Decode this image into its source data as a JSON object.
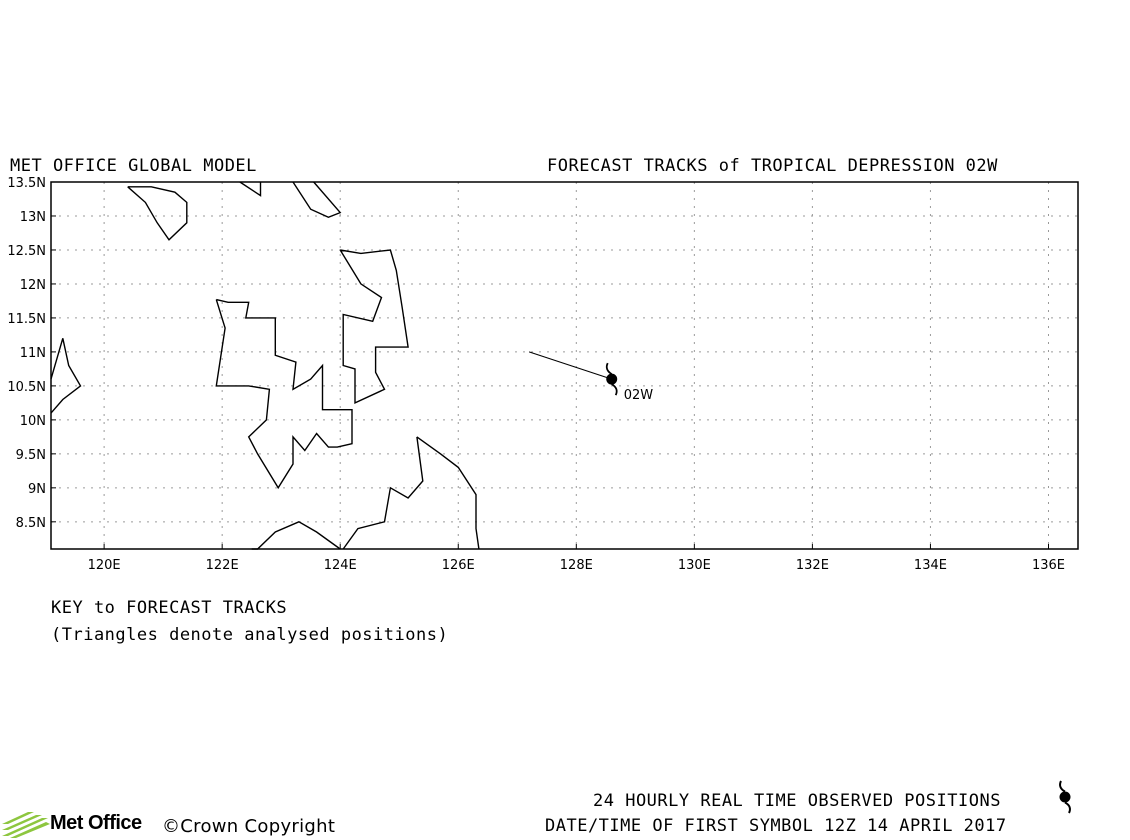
{
  "header": {
    "left_title": "MET OFFICE GLOBAL MODEL",
    "right_title": "FORECAST TRACKS of TROPICAL DEPRESSION 02W"
  },
  "map": {
    "lon_range": [
      119.1,
      136.5
    ],
    "lat_range": [
      8.1,
      13.5
    ],
    "x_ticks": [
      "120E",
      "122E",
      "124E",
      "126E",
      "128E",
      "130E",
      "132E",
      "134E",
      "136E"
    ],
    "x_tick_values": [
      120,
      122,
      124,
      126,
      128,
      130,
      132,
      134,
      136
    ],
    "y_ticks": [
      "13.5N",
      "13N",
      "12.5N",
      "12N",
      "11.5N",
      "11N",
      "10.5N",
      "10N",
      "9.5N",
      "9N",
      "8.5N"
    ],
    "y_tick_values": [
      13.5,
      13,
      12.5,
      12,
      11.5,
      11,
      10.5,
      10,
      9.5,
      9,
      8.5
    ],
    "grid": true,
    "coastlines": [
      [
        [
          120.4,
          13.43
        ],
        [
          120.8,
          13.43
        ],
        [
          121.2,
          13.35
        ],
        [
          121.4,
          13.2
        ],
        [
          121.4,
          12.9
        ],
        [
          121.1,
          12.65
        ],
        [
          120.9,
          12.9
        ],
        [
          120.7,
          13.2
        ],
        [
          120.4,
          13.43
        ]
      ],
      [
        [
          122.3,
          13.5
        ],
        [
          122.65,
          13.3
        ],
        [
          122.65,
          13.5
        ]
      ],
      [
        [
          123.2,
          13.5
        ],
        [
          123.5,
          13.1
        ],
        [
          123.8,
          12.98
        ],
        [
          124.0,
          13.05
        ],
        [
          123.55,
          13.5
        ]
      ],
      [
        [
          124.0,
          12.5
        ],
        [
          124.35,
          12.45
        ],
        [
          124.85,
          12.5
        ],
        [
          124.95,
          12.2
        ],
        [
          125.05,
          11.65
        ],
        [
          125.15,
          11.07
        ],
        [
          124.6,
          11.07
        ],
        [
          124.6,
          10.7
        ],
        [
          124.75,
          10.45
        ],
        [
          124.25,
          10.25
        ],
        [
          124.25,
          10.75
        ],
        [
          124.05,
          10.8
        ],
        [
          124.05,
          11.0
        ],
        [
          124.05,
          11.55
        ],
        [
          124.55,
          11.45
        ],
        [
          124.7,
          11.8
        ],
        [
          124.35,
          12.0
        ],
        [
          124.0,
          12.5
        ]
      ],
      [
        [
          121.9,
          11.77
        ],
        [
          122.1,
          11.73
        ],
        [
          122.45,
          11.73
        ],
        [
          122.4,
          11.5
        ],
        [
          122.9,
          11.5
        ],
        [
          122.9,
          10.95
        ],
        [
          123.25,
          10.85
        ],
        [
          123.2,
          10.45
        ],
        [
          123.5,
          10.6
        ],
        [
          123.7,
          10.8
        ],
        [
          123.7,
          10.15
        ],
        [
          124.2,
          10.15
        ],
        [
          124.2,
          9.65
        ],
        [
          123.95,
          9.6
        ],
        [
          123.8,
          9.6
        ],
        [
          123.6,
          9.8
        ],
        [
          123.4,
          9.55
        ],
        [
          123.2,
          9.75
        ],
        [
          123.2,
          9.35
        ],
        [
          122.95,
          9.0
        ],
        [
          122.6,
          9.5
        ],
        [
          122.45,
          9.75
        ],
        [
          122.75,
          10.0
        ],
        [
          122.8,
          10.45
        ],
        [
          122.45,
          10.5
        ],
        [
          122.1,
          10.5
        ],
        [
          121.9,
          10.5
        ],
        [
          122.05,
          11.35
        ],
        [
          121.9,
          11.77
        ]
      ],
      [
        [
          119.1,
          10.1
        ],
        [
          119.3,
          10.3
        ],
        [
          119.6,
          10.5
        ],
        [
          119.4,
          10.8
        ],
        [
          119.3,
          11.2
        ],
        [
          119.1,
          10.6
        ]
      ],
      [
        [
          125.3,
          9.75
        ],
        [
          125.7,
          9.5
        ],
        [
          126.0,
          9.3
        ],
        [
          126.3,
          8.9
        ],
        [
          126.3,
          8.4
        ],
        [
          126.35,
          8.1
        ]
      ],
      [
        [
          124.05,
          8.1
        ],
        [
          124.3,
          8.4
        ],
        [
          124.75,
          8.5
        ],
        [
          124.85,
          9.0
        ],
        [
          125.15,
          8.85
        ],
        [
          125.4,
          9.1
        ],
        [
          125.3,
          9.75
        ]
      ],
      [
        [
          122.5,
          8.1
        ],
        [
          122.6,
          8.1
        ],
        [
          122.9,
          8.35
        ],
        [
          123.3,
          8.5
        ],
        [
          123.6,
          8.35
        ],
        [
          124.0,
          8.1
        ]
      ]
    ],
    "storm_track": [
      [
        127.2,
        11.0
      ],
      [
        128.6,
        10.6
      ]
    ],
    "storm_position": [
      128.6,
      10.6
    ],
    "storm_label": "02W",
    "colors": {
      "line": "#000000",
      "grid": "#9a9a9a",
      "background": "#ffffff",
      "logo_green": "#8dc63f"
    }
  },
  "key": {
    "title": "KEY to FORECAST TRACKS",
    "subtitle": "(Triangles denote analysed positions)"
  },
  "footer": {
    "logo_text": "Met Office",
    "copyright": "©Crown Copyright",
    "observed_label": "24 HOURLY REAL TIME OBSERVED POSITIONS",
    "observed_icon": "tropical-cyclone-icon",
    "first_symbol": "DATE/TIME OF FIRST SYMBOL 12Z 14 APRIL 2017"
  }
}
